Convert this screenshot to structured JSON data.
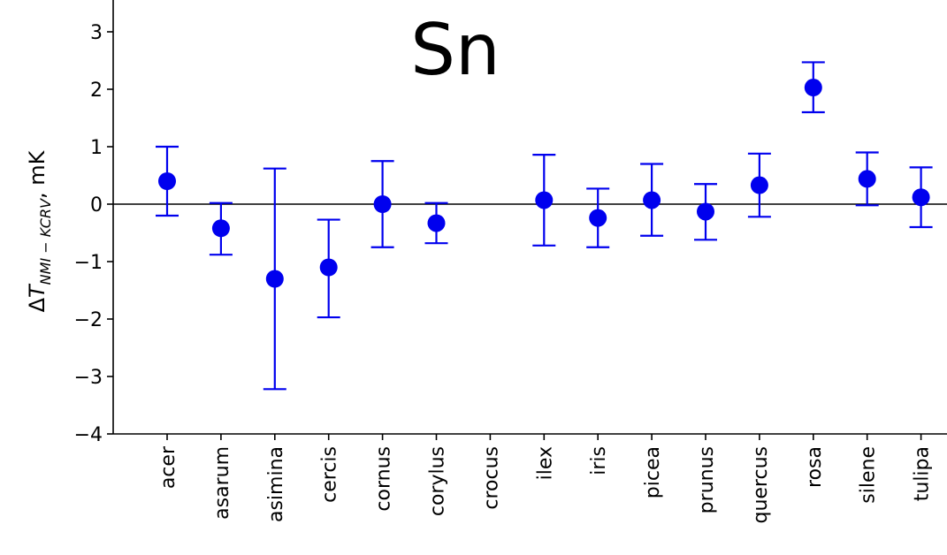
{
  "chart_data": {
    "type": "scatter",
    "title": "Sn",
    "xlabel": "",
    "ylabel": {
      "prefix": "ΔT",
      "subscript": "NMI − KCRV",
      "suffix": ", mK"
    },
    "ylim": [
      -4,
      3.5
    ],
    "yticks": [
      -4,
      -3,
      -2,
      -1,
      0,
      1,
      2,
      3
    ],
    "ytick_labels": [
      "−4",
      "−3",
      "−2",
      "−1",
      "0",
      "1",
      "2",
      "3"
    ],
    "categories": [
      "acer",
      "asarum",
      "asimina",
      "cercis",
      "cornus",
      "corylus",
      "crocus",
      "ilex",
      "iris",
      "picea",
      "prunus",
      "quercus",
      "rosa",
      "silene",
      "tulipa"
    ],
    "values": [
      0.4,
      -0.42,
      -1.3,
      -1.1,
      0.0,
      -0.33,
      null,
      0.07,
      -0.24,
      0.07,
      -0.13,
      0.33,
      2.03,
      0.44,
      0.12
    ],
    "err_low": [
      -0.2,
      -0.88,
      -3.22,
      -1.97,
      -0.75,
      -0.68,
      null,
      -0.72,
      -0.75,
      -0.55,
      -0.62,
      -0.22,
      1.6,
      -0.02,
      -0.4
    ],
    "err_high": [
      1.0,
      0.02,
      0.62,
      -0.27,
      0.75,
      0.02,
      null,
      0.86,
      0.27,
      0.7,
      0.35,
      0.88,
      2.47,
      0.9,
      0.64
    ],
    "reference_line": 0,
    "grid": false,
    "colors": {
      "points": "#0000ee",
      "axis": "#000000"
    }
  }
}
